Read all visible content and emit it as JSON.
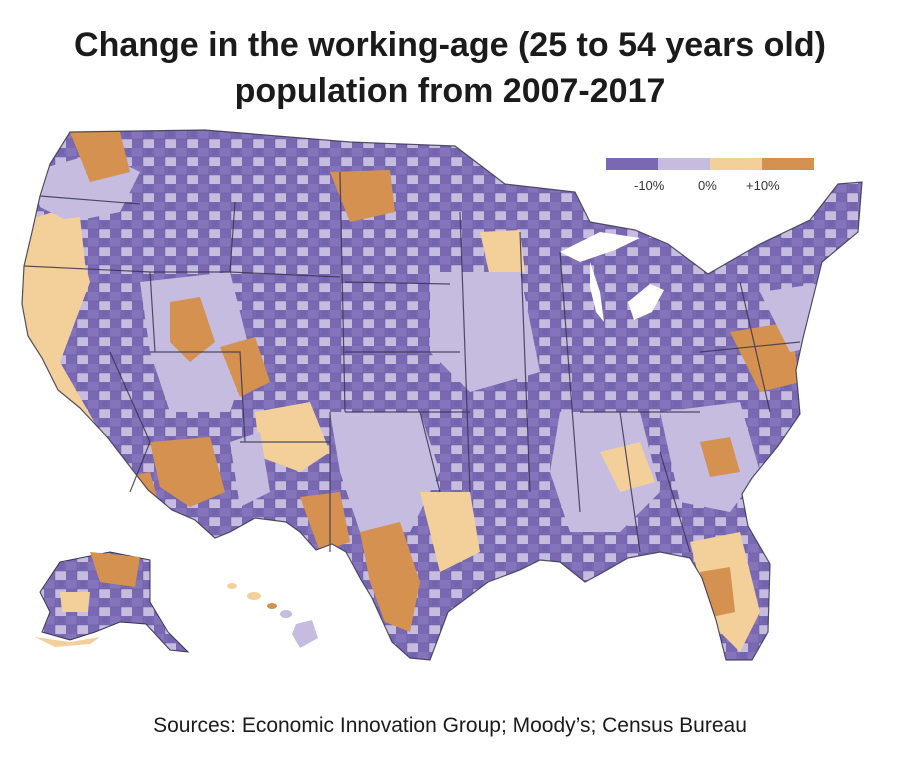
{
  "title": {
    "line1": "Change in the working-age (25 to 54 years old)",
    "line2": "population from 2007-2017"
  },
  "legend": {
    "colors": [
      "#7b68b3",
      "#c5bce0",
      "#f3cf9a",
      "#d4914f"
    ],
    "labels": [
      "-10%",
      "0%",
      "+10%"
    ]
  },
  "source": "Sources: Economic Innovation Group; Moody’s; Census Bureau",
  "map": {
    "regions": [
      "Alaska",
      "Hawaii",
      "Contiguous United States"
    ],
    "unit": "county",
    "palette": {
      "strong_decline": "#7b68b3",
      "decline": "#c5bce0",
      "growth": "#f3cf9a",
      "strong_growth": "#d4914f",
      "border": "#3a3550"
    }
  }
}
